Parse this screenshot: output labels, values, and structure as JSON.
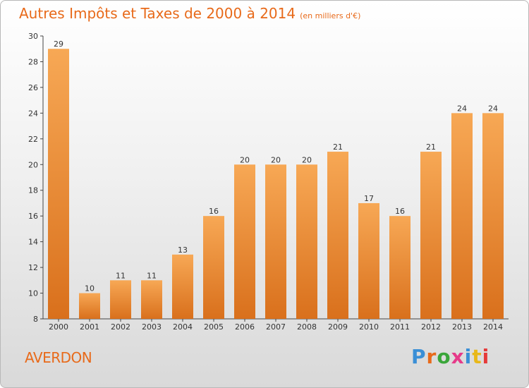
{
  "header": {
    "title": "Autres Impôts et Taxes de 2000 à 2014",
    "unit": "(en milliers d'€)"
  },
  "commune": "AVERDON",
  "logo": {
    "text": "Proxiti",
    "letter_colors": [
      "#3a8fd6",
      "#e86a1a",
      "#3aa63a",
      "#e63a8a",
      "#3a8fd6",
      "#e8b81a",
      "#e63a3a"
    ]
  },
  "colors": {
    "bar_top": "#f7a855",
    "bar_bottom": "#d9701c",
    "title": "#e86a1a"
  },
  "chart_data": {
    "type": "bar",
    "categories": [
      "2000",
      "2001",
      "2002",
      "2003",
      "2004",
      "2005",
      "2006",
      "2007",
      "2008",
      "2009",
      "2010",
      "2011",
      "2012",
      "2013",
      "2014"
    ],
    "values": [
      29,
      10,
      11,
      11,
      13,
      16,
      20,
      20,
      20,
      21,
      17,
      16,
      21,
      24,
      24
    ],
    "title": "Autres Impôts et Taxes de 2000 à 2014",
    "subtitle": "(en milliers d'€)",
    "ylim": [
      8,
      30
    ],
    "yticks": [
      8,
      10,
      12,
      14,
      16,
      18,
      20,
      22,
      24,
      26,
      28,
      30
    ],
    "grid": false,
    "data_labels": true
  }
}
